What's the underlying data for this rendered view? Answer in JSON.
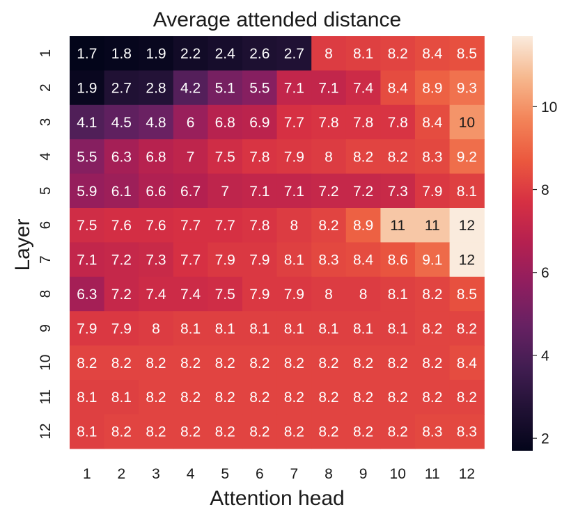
{
  "chart_data": {
    "type": "heatmap",
    "title": "Average attended distance",
    "xlabel": "Attention head",
    "ylabel": "Layer",
    "x_categories": [
      "1",
      "2",
      "3",
      "4",
      "5",
      "6",
      "7",
      "8",
      "9",
      "10",
      "11",
      "12"
    ],
    "y_categories": [
      "1",
      "2",
      "3",
      "4",
      "5",
      "6",
      "7",
      "8",
      "9",
      "10",
      "11",
      "12"
    ],
    "values": [
      [
        1.7,
        1.8,
        1.9,
        2.2,
        2.4,
        2.6,
        2.7,
        8,
        8.1,
        8.2,
        8.4,
        8.5
      ],
      [
        1.9,
        2.7,
        2.8,
        4.2,
        5.1,
        5.5,
        7.1,
        7.1,
        7.4,
        8.4,
        8.9,
        9.3
      ],
      [
        4.1,
        4.5,
        4.8,
        6,
        6.8,
        6.9,
        7.7,
        7.8,
        7.8,
        7.8,
        8.4,
        10
      ],
      [
        5.5,
        6.3,
        6.8,
        7,
        7.5,
        7.8,
        7.9,
        8,
        8.2,
        8.2,
        8.3,
        9.2
      ],
      [
        5.9,
        6.1,
        6.6,
        6.7,
        7,
        7.1,
        7.1,
        7.2,
        7.2,
        7.3,
        7.9,
        8.1
      ],
      [
        7.5,
        7.6,
        7.6,
        7.7,
        7.7,
        7.8,
        8,
        8.2,
        8.9,
        11,
        11,
        12
      ],
      [
        7.1,
        7.2,
        7.3,
        7.7,
        7.9,
        7.9,
        8.1,
        8.3,
        8.4,
        8.6,
        9.1,
        12
      ],
      [
        6.3,
        7.2,
        7.4,
        7.4,
        7.5,
        7.9,
        7.9,
        8,
        8,
        8.1,
        8.2,
        8.5
      ],
      [
        7.9,
        7.9,
        8,
        8.1,
        8.1,
        8.1,
        8.1,
        8.1,
        8.1,
        8.1,
        8.2,
        8.2
      ],
      [
        8.2,
        8.2,
        8.2,
        8.2,
        8.2,
        8.2,
        8.2,
        8.2,
        8.2,
        8.2,
        8.2,
        8.4
      ],
      [
        8.1,
        8.1,
        8.2,
        8.2,
        8.2,
        8.2,
        8.2,
        8.2,
        8.2,
        8.2,
        8.2,
        8.2
      ],
      [
        8.1,
        8.2,
        8.2,
        8.2,
        8.2,
        8.2,
        8.2,
        8.2,
        8.2,
        8.2,
        8.3,
        8.3
      ]
    ],
    "value_range": [
      1.7,
      11.7
    ],
    "colorbar_ticks": [
      "2",
      "4",
      "6",
      "8",
      "10"
    ],
    "colormap": "rocket",
    "grid": false,
    "colorbar_position": "right"
  }
}
